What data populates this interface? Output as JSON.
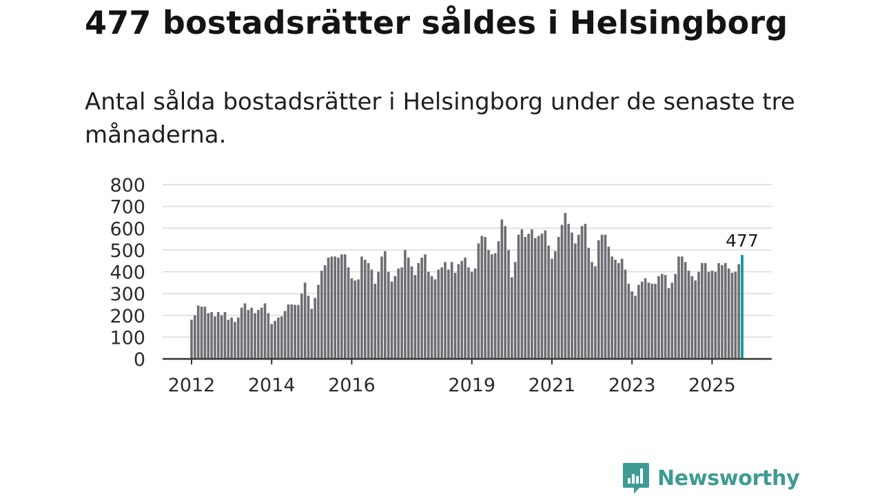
{
  "headline": "477 bostadsrätter såldes i Helsingborg",
  "subheadline": "Antal sålda bostadsrätter i Helsingborg under de senaste tre månaderna.",
  "brand": {
    "name": "Newsworthy",
    "icon": "newsworthy-logo-icon",
    "color": "#3d9b93"
  },
  "colors": {
    "bar": "#6e6d73",
    "highlight": "#159e9a",
    "grid": "#d9d9d9",
    "axis": "#333333"
  },
  "chart_data": {
    "type": "bar",
    "title": "477 bostadsrätter såldes i Helsingborg",
    "subtitle": "Antal sålda bostadsrätter i Helsingborg under de senaste tre månaderna.",
    "xlabel": "",
    "ylabel": "",
    "ylim": [
      0,
      800
    ],
    "yticks": [
      0,
      100,
      200,
      300,
      400,
      500,
      600,
      700,
      800
    ],
    "grid": true,
    "x_start_year": 2012,
    "x_end_year": 2025.75,
    "xticks": [
      {
        "year": 2012,
        "label": "2012"
      },
      {
        "year": 2014,
        "label": "2014"
      },
      {
        "year": 2016,
        "label": "2016"
      },
      {
        "year": 2019,
        "label": "2019"
      },
      {
        "year": 2021,
        "label": "2021"
      },
      {
        "year": 2023,
        "label": "2023"
      },
      {
        "year": 2025,
        "label": "2025"
      }
    ],
    "highlight": {
      "value": 477,
      "label": "477"
    },
    "values": [
      180,
      200,
      245,
      240,
      240,
      210,
      215,
      195,
      215,
      200,
      215,
      180,
      190,
      170,
      190,
      235,
      255,
      225,
      235,
      210,
      225,
      235,
      255,
      210,
      160,
      175,
      190,
      195,
      220,
      250,
      250,
      248,
      248,
      300,
      350,
      290,
      230,
      280,
      340,
      405,
      430,
      465,
      470,
      470,
      465,
      480,
      480,
      420,
      370,
      360,
      365,
      470,
      455,
      440,
      410,
      345,
      400,
      470,
      495,
      400,
      355,
      380,
      415,
      420,
      500,
      465,
      425,
      385,
      440,
      465,
      480,
      400,
      380,
      365,
      410,
      420,
      445,
      410,
      445,
      395,
      435,
      450,
      465,
      420,
      400,
      415,
      530,
      565,
      560,
      500,
      480,
      485,
      540,
      640,
      610,
      500,
      375,
      445,
      570,
      595,
      560,
      575,
      595,
      555,
      565,
      575,
      590,
      520,
      460,
      495,
      560,
      615,
      670,
      620,
      580,
      530,
      570,
      610,
      620,
      510,
      445,
      425,
      545,
      570,
      570,
      515,
      470,
      455,
      440,
      460,
      410,
      345,
      310,
      290,
      340,
      355,
      370,
      350,
      345,
      345,
      380,
      390,
      385,
      325,
      350,
      390,
      470,
      470,
      445,
      405,
      380,
      360,
      400,
      440,
      440,
      400,
      405,
      400,
      440,
      430,
      440,
      415,
      395,
      400,
      435,
      477
    ]
  }
}
